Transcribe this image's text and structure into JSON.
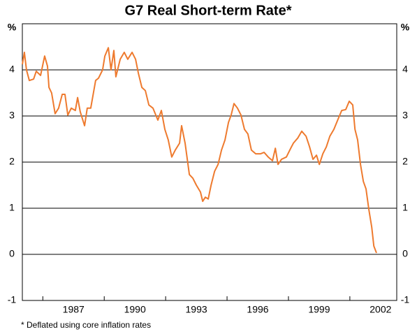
{
  "chart_data": {
    "type": "line",
    "title": "G7 Real Short-term Rate*",
    "y_unit": "%",
    "footnote": "* Deflated using core inflation rates",
    "xlim": [
      1984.5,
      2002.79
    ],
    "ylim": [
      -1,
      5
    ],
    "xticks": [
      1987,
      1990,
      1993,
      1996,
      1999,
      2002
    ],
    "x_minor_ticks": [
      1985.5,
      1988.5,
      1991.5,
      1994.5,
      1997.5,
      2000.5
    ],
    "yticks": [
      -1,
      0,
      1,
      2,
      3,
      4
    ],
    "grid": true,
    "series": [
      {
        "name": "G7 Real Short-term Rate",
        "color": "#ee7a2e",
        "x": [
          1984.5,
          1984.6,
          1984.7,
          1984.84,
          1985.05,
          1985.18,
          1985.39,
          1985.59,
          1985.73,
          1985.8,
          1985.93,
          1986.1,
          1986.27,
          1986.45,
          1986.58,
          1986.72,
          1986.89,
          1987.09,
          1987.2,
          1987.33,
          1987.54,
          1987.67,
          1987.84,
          1988.08,
          1988.22,
          1988.42,
          1988.53,
          1988.7,
          1988.83,
          1988.97,
          1989.07,
          1989.28,
          1989.48,
          1989.65,
          1989.86,
          1990.03,
          1990.17,
          1990.34,
          1990.51,
          1990.68,
          1990.88,
          1991.12,
          1991.29,
          1991.46,
          1991.63,
          1991.8,
          1991.97,
          1992.18,
          1992.28,
          1992.45,
          1992.66,
          1992.83,
          1993.0,
          1993.2,
          1993.31,
          1993.44,
          1993.58,
          1993.72,
          1993.89,
          1994.06,
          1994.23,
          1994.4,
          1994.57,
          1994.7,
          1994.84,
          1995.01,
          1995.18,
          1995.35,
          1995.52,
          1995.69,
          1995.9,
          1996.14,
          1996.31,
          1996.51,
          1996.72,
          1996.86,
          1996.99,
          1997.16,
          1997.4,
          1997.61,
          1997.74,
          1997.95,
          1998.15,
          1998.36,
          1998.53,
          1998.7,
          1998.87,
          1999.01,
          1999.18,
          1999.35,
          1999.52,
          1999.72,
          1999.93,
          2000.1,
          2000.3,
          2000.47,
          2000.64,
          2000.75,
          2000.88,
          2001.02,
          2001.16,
          2001.29,
          2001.43,
          2001.57,
          2001.67,
          2001.8
        ],
        "values": [
          4.12,
          4.38,
          4.0,
          3.77,
          3.8,
          3.97,
          3.88,
          4.3,
          4.08,
          3.62,
          3.5,
          3.05,
          3.17,
          3.47,
          3.47,
          3.02,
          3.17,
          3.12,
          3.4,
          3.09,
          2.79,
          3.17,
          3.17,
          3.77,
          3.82,
          4.0,
          4.3,
          4.48,
          4.0,
          4.42,
          3.85,
          4.23,
          4.38,
          4.23,
          4.38,
          4.23,
          3.92,
          3.62,
          3.55,
          3.24,
          3.17,
          2.91,
          3.12,
          2.71,
          2.48,
          2.11,
          2.26,
          2.41,
          2.79,
          2.41,
          1.73,
          1.65,
          1.5,
          1.35,
          1.15,
          1.24,
          1.2,
          1.5,
          1.8,
          1.95,
          2.26,
          2.48,
          2.86,
          3.02,
          3.27,
          3.17,
          3.02,
          2.71,
          2.61,
          2.26,
          2.18,
          2.18,
          2.21,
          2.11,
          2.03,
          2.3,
          1.95,
          2.06,
          2.11,
          2.3,
          2.41,
          2.52,
          2.67,
          2.56,
          2.33,
          2.06,
          2.15,
          1.95,
          2.18,
          2.33,
          2.56,
          2.71,
          2.94,
          3.12,
          3.14,
          3.32,
          3.24,
          2.71,
          2.48,
          1.95,
          1.58,
          1.42,
          0.97,
          0.59,
          0.18,
          0.03
        ]
      }
    ]
  }
}
